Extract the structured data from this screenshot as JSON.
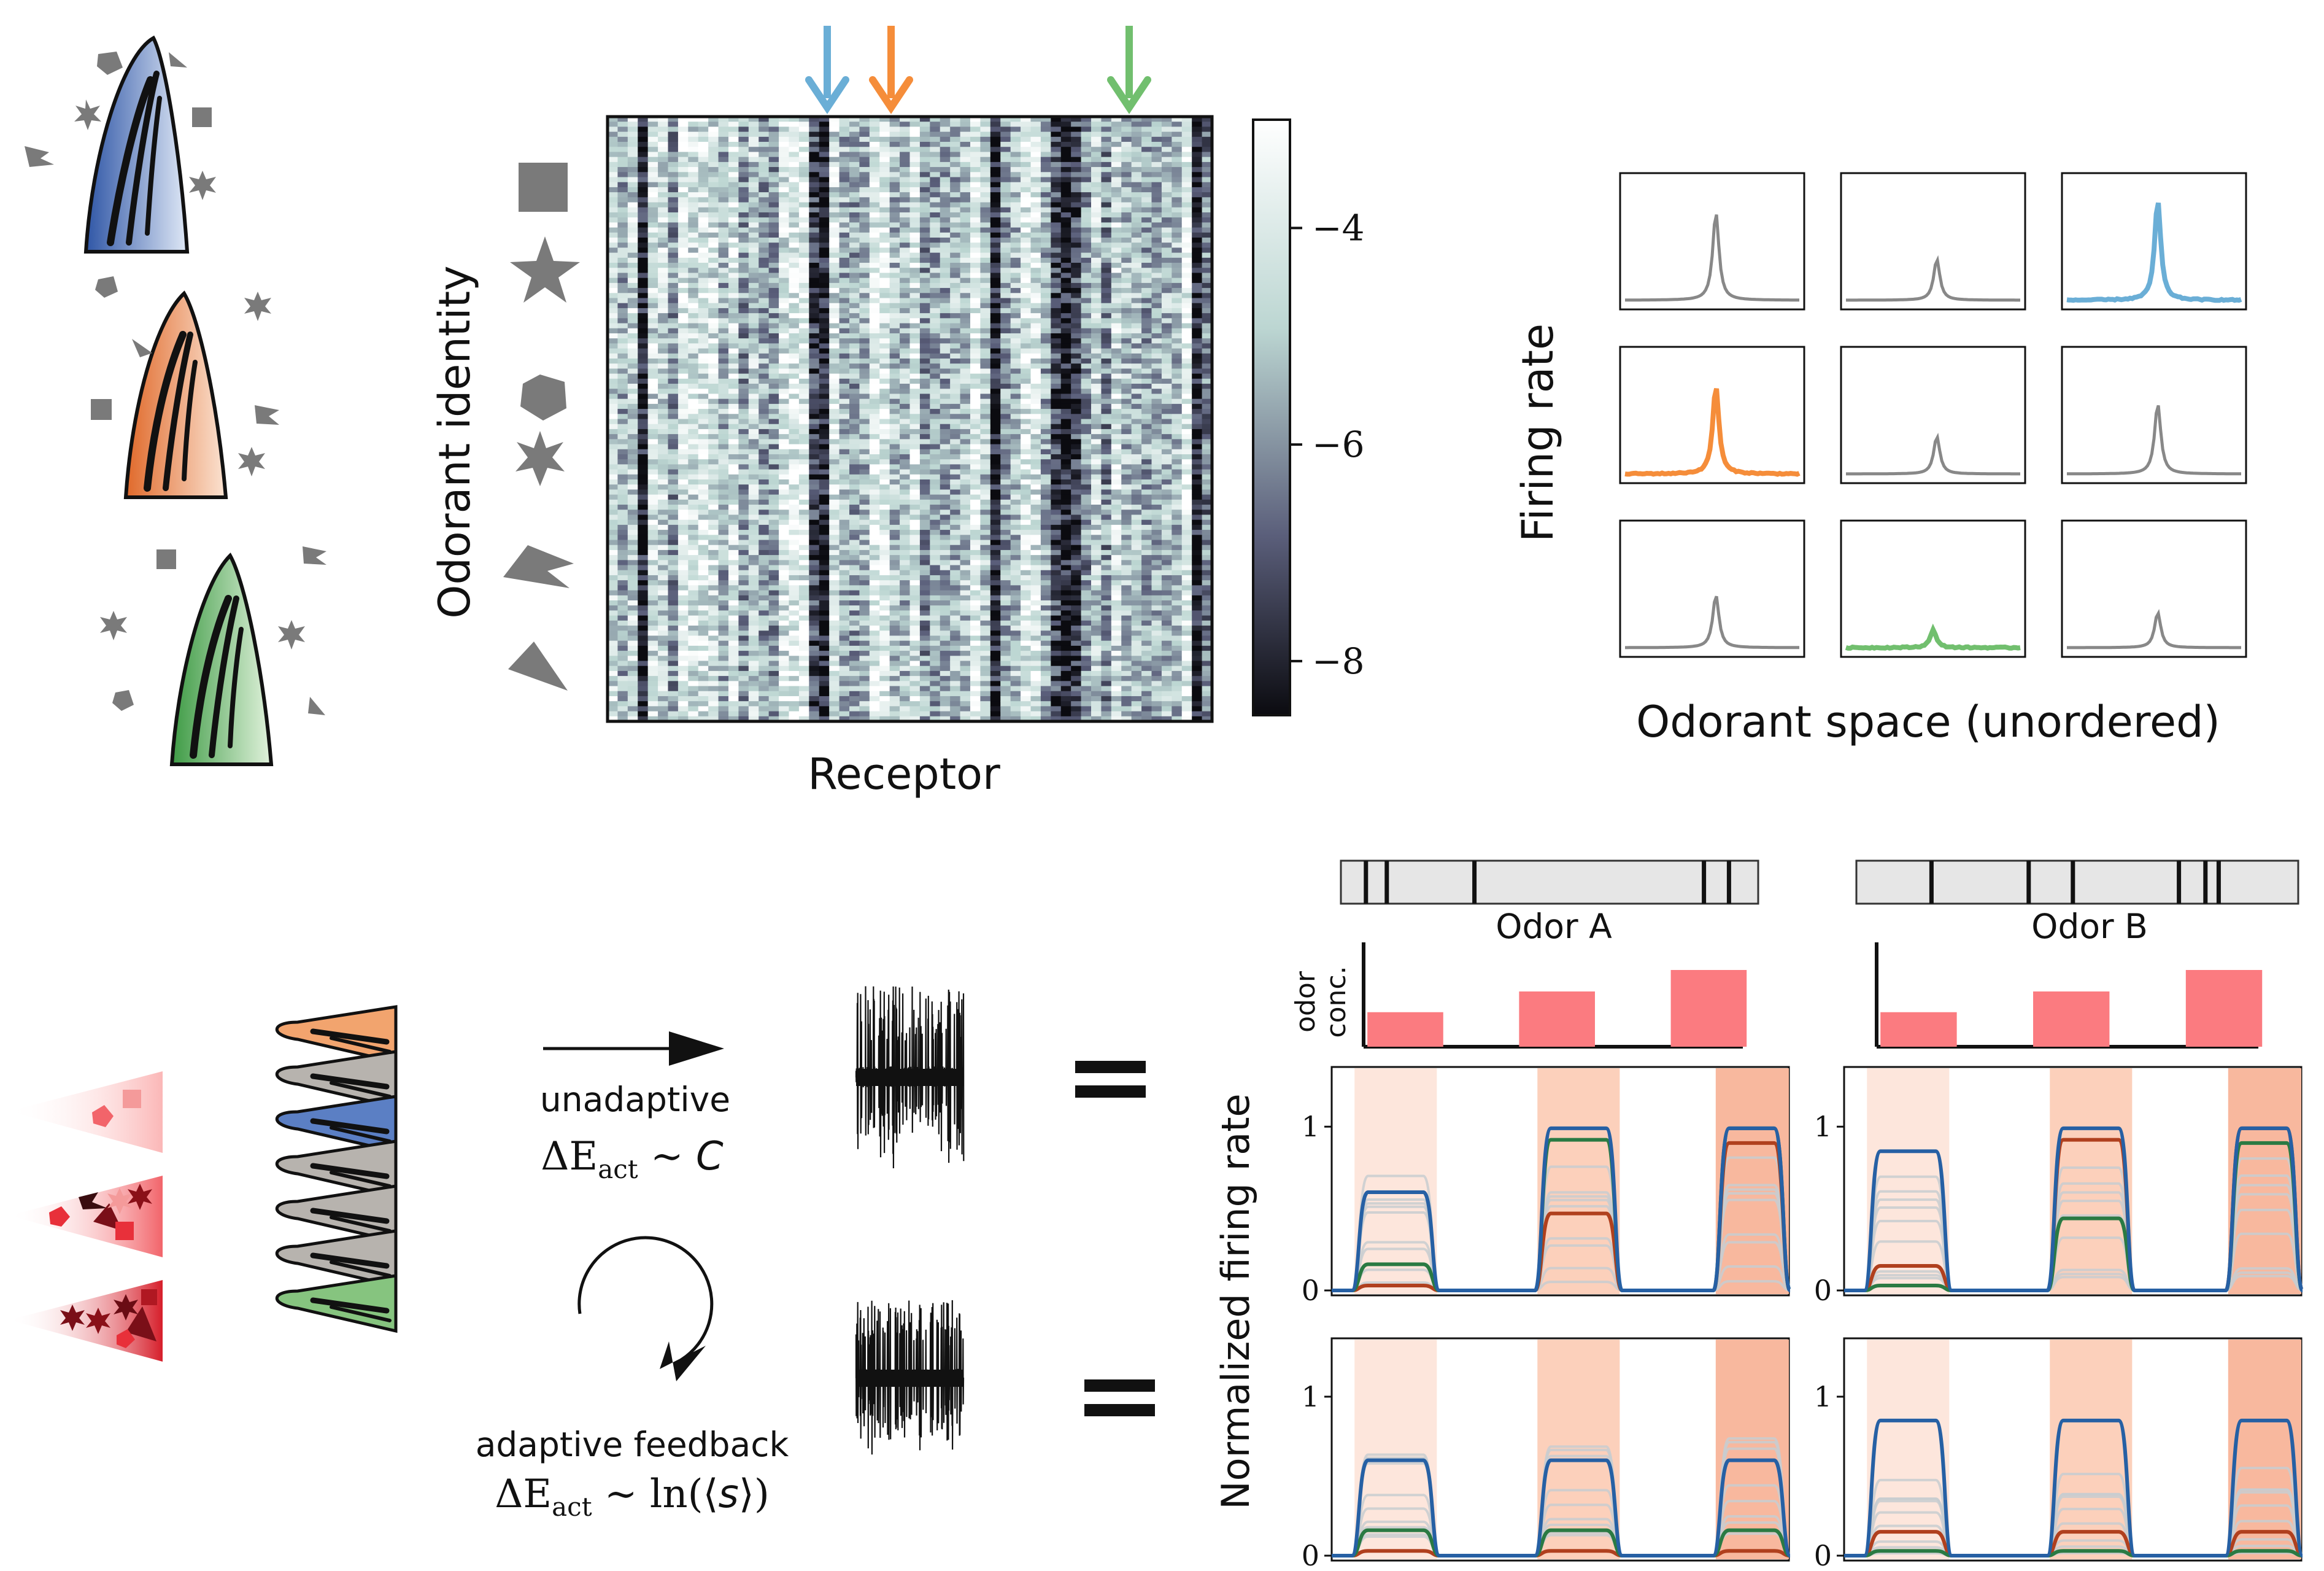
{
  "panel_a": {
    "ylabel": "Odorant identity",
    "xlabel": "Receptor",
    "colorbar_ticks": [
      "−4",
      "−6",
      "−8"
    ],
    "colorbar_values": [
      -4,
      -6,
      -8
    ],
    "colorbar_range": [
      -8.5,
      -3
    ],
    "arrow_colors": [
      "#6aaed6",
      "#f58d3a",
      "#71bf6e"
    ],
    "colormap": [
      "#0b0b10",
      "#5a5e7a",
      "#bcd6d2",
      "#ffffff"
    ]
  },
  "panel_b": {
    "ylabel": "Firing rate",
    "xlabel": "Odorant space (unordered)",
    "peak_colors": [
      "#888888",
      "#888888",
      "#6aaed6",
      "#f58d3a",
      "#888888",
      "#888888",
      "#888888",
      "#71bf6e",
      "#888888"
    ],
    "peak_heights": [
      0.75,
      0.35,
      0.85,
      0.75,
      0.32,
      0.6,
      0.45,
      0.15,
      0.3
    ]
  },
  "panel_c": {
    "unadaptive_label": "unadaptive",
    "unadaptive_formula": "ΔEₐₕₜ ~ C",
    "adaptive_label": "adaptive feedback",
    "adaptive_formula": "ΔEₐₕₜ ~ ln(⟨s⟩)",
    "receptor_colors": [
      "#f2a46e",
      "#b7b3ae",
      "#5b7fc4",
      "#b7b3ae",
      "#b7b3ae",
      "#b7b3ae",
      "#86c47f"
    ]
  },
  "panel_d": {
    "odor_a_label": "Odor A",
    "odor_b_label": "Odor B",
    "conc_label_line1": "odor",
    "conc_label_line2": "conc.",
    "ylabel": "Normalized firing rate",
    "yticks": [
      "0",
      "1"
    ],
    "conc_values": [
      0.45,
      0.72,
      1.0
    ],
    "odor_a_spikes": [
      0.06,
      0.11,
      0.32,
      0.87,
      0.93
    ],
    "odor_b_spikes": [
      0.17,
      0.39,
      0.49,
      0.73,
      0.79,
      0.82
    ],
    "series_colors": {
      "blue": "#2660a4",
      "green": "#2a7a43",
      "red": "#b0401e",
      "gray": "#c8ccd0"
    },
    "pulse_colors": [
      "#fde6dc",
      "#fcd0bb",
      "#f8b89e"
    ],
    "unadaptive_a": {
      "blue": [
        0.6,
        0.99,
        0.99
      ],
      "green": [
        0.16,
        0.92,
        0.99
      ],
      "red": [
        0.03,
        0.47,
        0.9
      ]
    },
    "unadaptive_b": {
      "blue": [
        0.85,
        0.99,
        0.99
      ],
      "green": [
        0.03,
        0.44,
        0.9
      ],
      "red": [
        0.15,
        0.92,
        0.99
      ]
    },
    "adaptive_a": {
      "blue": [
        0.6,
        0.6,
        0.6
      ],
      "green": [
        0.16,
        0.16,
        0.16
      ],
      "red": [
        0.03,
        0.03,
        0.03
      ]
    },
    "adaptive_b": {
      "blue": [
        0.85,
        0.85,
        0.85
      ],
      "green": [
        0.03,
        0.03,
        0.03
      ],
      "red": [
        0.15,
        0.15,
        0.15
      ]
    }
  }
}
